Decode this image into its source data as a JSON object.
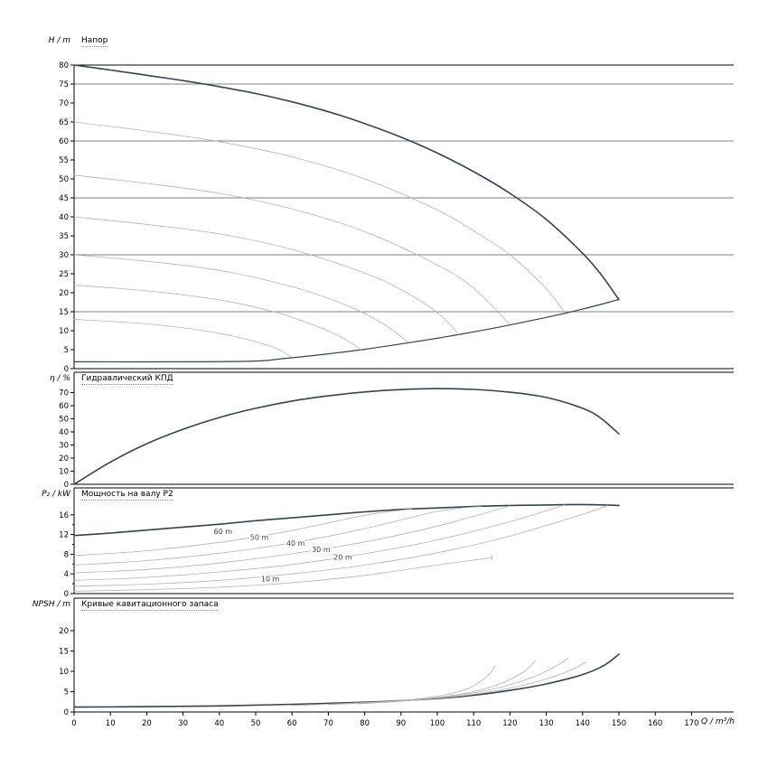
{
  "palette": {
    "dark": "#37424e",
    "gray": "#b3b3b3"
  },
  "x_axis": {
    "label": "Q / m³/h",
    "ticks": [
      0,
      10,
      20,
      30,
      40,
      50,
      60,
      70,
      80,
      90,
      100,
      110,
      120,
      130,
      140,
      150,
      160,
      170
    ]
  },
  "chart_data": [
    {
      "type": "line",
      "title": "Напор",
      "ylabel": "H / m",
      "yticks": [
        0,
        5,
        10,
        15,
        20,
        25,
        30,
        35,
        40,
        45,
        50,
        55,
        60,
        65,
        70,
        75,
        80
      ],
      "ylim": [
        0,
        80
      ],
      "gridlines": [
        15,
        30,
        45,
        60,
        75
      ],
      "series": [
        {
          "name": "max-speed-head",
          "color": "dark",
          "width": 1.6,
          "points": [
            [
              0,
              80
            ],
            [
              10,
              78.7
            ],
            [
              20,
              77.3
            ],
            [
              30,
              75.9
            ],
            [
              40,
              74.3
            ],
            [
              50,
              72.5
            ],
            [
              60,
              70.3
            ],
            [
              70,
              67.7
            ],
            [
              80,
              64.6
            ],
            [
              90,
              61
            ],
            [
              100,
              56.8
            ],
            [
              110,
              51.9
            ],
            [
              120,
              46.2
            ],
            [
              130,
              39.3
            ],
            [
              140,
              30.4
            ],
            [
              145,
              24.9
            ],
            [
              150,
              18.2
            ]
          ]
        },
        {
          "name": "control-limit",
          "color": "dark",
          "width": 1.2,
          "points": [
            [
              0,
              1.8
            ],
            [
              30,
              1.8
            ],
            [
              50,
              2
            ],
            [
              57,
              2.6
            ],
            [
              70,
              3.9
            ],
            [
              80,
              5.1
            ],
            [
              90,
              6.5
            ],
            [
              100,
              8
            ],
            [
              110,
              9.7
            ],
            [
              120,
              11.5
            ],
            [
              130,
              13.5
            ],
            [
              140,
              15.7
            ],
            [
              150,
              18.2
            ]
          ]
        },
        {
          "name": "speed-curve-65",
          "color": "gray",
          "width": 0.8,
          "points": [
            [
              0,
              65
            ],
            [
              20,
              62.6
            ],
            [
              40,
              59.8
            ],
            [
              60,
              55.8
            ],
            [
              80,
              50
            ],
            [
              100,
              41.8
            ],
            [
              110,
              36.3
            ],
            [
              120,
              30
            ],
            [
              130,
              21
            ],
            [
              135,
              14.9
            ]
          ]
        },
        {
          "name": "speed-curve-51",
          "color": "gray",
          "width": 0.8,
          "points": [
            [
              0,
              51
            ],
            [
              20,
              48.8
            ],
            [
              40,
              46.2
            ],
            [
              60,
              42.1
            ],
            [
              80,
              36.1
            ],
            [
              100,
              27.3
            ],
            [
              110,
              21.2
            ],
            [
              120,
              11.6
            ]
          ]
        },
        {
          "name": "speed-curve-40",
          "color": "gray",
          "width": 0.8,
          "points": [
            [
              0,
              40
            ],
            [
              20,
              38
            ],
            [
              40,
              35.5
            ],
            [
              60,
              31.4
            ],
            [
              80,
              25.2
            ],
            [
              90,
              20.8
            ],
            [
              100,
              14.8
            ],
            [
              106,
              9
            ]
          ]
        },
        {
          "name": "speed-curve-30",
          "color": "gray",
          "width": 0.8,
          "points": [
            [
              0,
              30
            ],
            [
              20,
              28.3
            ],
            [
              40,
              25.9
            ],
            [
              60,
              21.6
            ],
            [
              75,
              16.7
            ],
            [
              85,
              11.9
            ],
            [
              92,
              6.9
            ]
          ]
        },
        {
          "name": "speed-curve-22",
          "color": "gray",
          "width": 0.8,
          "points": [
            [
              0,
              22
            ],
            [
              20,
              20.5
            ],
            [
              40,
              18.1
            ],
            [
              55,
              15
            ],
            [
              65,
              11.8
            ],
            [
              73,
              8.6
            ],
            [
              79,
              5
            ]
          ]
        },
        {
          "name": "speed-curve-13",
          "color": "gray",
          "width": 0.8,
          "points": [
            [
              0,
              13
            ],
            [
              20,
              11.8
            ],
            [
              35,
              10.1
            ],
            [
              45,
              8.3
            ],
            [
              55,
              5.6
            ],
            [
              60,
              3
            ]
          ]
        }
      ]
    },
    {
      "type": "line",
      "title": "Гидравлический КПД",
      "ylabel": "η / %",
      "yticks": [
        0,
        10,
        20,
        30,
        40,
        50,
        60,
        70
      ],
      "ylim": [
        0,
        85
      ],
      "gridlines": [],
      "series": [
        {
          "name": "efficiency",
          "color": "dark",
          "width": 1.6,
          "points": [
            [
              0,
              0
            ],
            [
              10,
              17
            ],
            [
              20,
              31
            ],
            [
              30,
              42
            ],
            [
              40,
              51
            ],
            [
              50,
              58
            ],
            [
              60,
              63.5
            ],
            [
              70,
              67.5
            ],
            [
              80,
              70.5
            ],
            [
              90,
              72.3
            ],
            [
              100,
              73
            ],
            [
              110,
              72.4
            ],
            [
              120,
              70.3
            ],
            [
              130,
              66.3
            ],
            [
              140,
              58
            ],
            [
              145,
              50.5
            ],
            [
              150,
              38.5
            ]
          ]
        }
      ]
    },
    {
      "type": "line",
      "title": "Мощность на валу P2",
      "ylabel": "P₂ / kW",
      "yticks": [
        0,
        4,
        8,
        12,
        16
      ],
      "minor_ticks": [
        2,
        6,
        10,
        14
      ],
      "ylim": [
        0,
        21
      ],
      "gridlines": [],
      "series": [
        {
          "name": "max-speed-power",
          "color": "dark",
          "width": 1.6,
          "points": [
            [
              0,
              11.8
            ],
            [
              10,
              12.3
            ],
            [
              20,
              12.9
            ],
            [
              30,
              13.5
            ],
            [
              40,
              14.1
            ],
            [
              50,
              14.8
            ],
            [
              60,
              15.4
            ],
            [
              70,
              16
            ],
            [
              80,
              16.6
            ],
            [
              90,
              17.1
            ],
            [
              100,
              17.4
            ],
            [
              110,
              17.7
            ],
            [
              120,
              17.9
            ],
            [
              130,
              18
            ],
            [
              140,
              18.1
            ],
            [
              150,
              17.9
            ]
          ]
        },
        {
          "name": "power-60m",
          "label": "60 m",
          "label_pos": [
            41,
            12.1
          ],
          "color": "gray",
          "width": 0.8,
          "points": [
            [
              0,
              7.7
            ],
            [
              20,
              8.7
            ],
            [
              40,
              10.4
            ],
            [
              60,
              12.8
            ],
            [
              80,
              15.9
            ],
            [
              93,
              17.2
            ]
          ]
        },
        {
          "name": "power-50m",
          "label": "50 m",
          "label_pos": [
            51,
            10.9
          ],
          "color": "gray",
          "width": 0.8,
          "points": [
            [
              0,
              5.8
            ],
            [
              20,
              6.7
            ],
            [
              40,
              8.2
            ],
            [
              60,
              10.3
            ],
            [
              80,
              13.2
            ],
            [
              100,
              16.7
            ],
            [
              112,
              17.7
            ]
          ]
        },
        {
          "name": "power-40m",
          "label": "40 m",
          "label_pos": [
            61,
            9.7
          ],
          "color": "gray",
          "width": 0.8,
          "points": [
            [
              0,
              4.2
            ],
            [
              20,
              4.9
            ],
            [
              40,
              6.2
            ],
            [
              60,
              8.1
            ],
            [
              80,
              10.5
            ],
            [
              100,
              13.7
            ],
            [
              120,
              17.8
            ]
          ]
        },
        {
          "name": "power-30m",
          "label": "30 m",
          "label_pos": [
            68,
            8.4
          ],
          "color": "gray",
          "width": 0.8,
          "points": [
            [
              0,
              2.7
            ],
            [
              20,
              3.3
            ],
            [
              40,
              4.4
            ],
            [
              60,
              5.9
            ],
            [
              80,
              8.1
            ],
            [
              100,
              10.9
            ],
            [
              120,
              14.6
            ],
            [
              135,
              18
            ]
          ]
        },
        {
          "name": "power-20m",
          "label": "20 m",
          "label_pos": [
            74,
            6.9
          ],
          "color": "gray",
          "width": 0.8,
          "points": [
            [
              0,
              1.5
            ],
            [
              20,
              1.9
            ],
            [
              40,
              2.7
            ],
            [
              60,
              4
            ],
            [
              80,
              5.8
            ],
            [
              100,
              8.3
            ],
            [
              120,
              11.7
            ],
            [
              140,
              16.1
            ],
            [
              147,
              17.9
            ]
          ]
        },
        {
          "name": "power-10m",
          "label": "10 m",
          "label_pos": [
            54,
            2.5
          ],
          "color": "gray",
          "width": 0.8,
          "end_tick": true,
          "points": [
            [
              0,
              0.5
            ],
            [
              20,
              0.8
            ],
            [
              40,
              1.3
            ],
            [
              60,
              2.2
            ],
            [
              80,
              3.7
            ],
            [
              100,
              5.8
            ],
            [
              115,
              7.3
            ]
          ]
        }
      ]
    },
    {
      "type": "line",
      "title": "Кривые кавитационного запаса",
      "ylabel": "NPSH / m",
      "yticks": [
        0,
        5,
        10,
        15,
        20
      ],
      "ylim": [
        0,
        28
      ],
      "gridlines": [],
      "series": [
        {
          "name": "npsh-max",
          "color": "dark",
          "width": 1.6,
          "points": [
            [
              0,
              1.2
            ],
            [
              20,
              1.3
            ],
            [
              40,
              1.5
            ],
            [
              60,
              1.9
            ],
            [
              80,
              2.4
            ],
            [
              90,
              2.8
            ],
            [
              100,
              3.3
            ],
            [
              110,
              4.1
            ],
            [
              120,
              5.3
            ],
            [
              130,
              6.9
            ],
            [
              140,
              9.2
            ],
            [
              146,
              11.5
            ],
            [
              150,
              14.2
            ]
          ]
        },
        {
          "name": "npsh-reduced-1",
          "color": "gray",
          "width": 0.8,
          "points": [
            [
              60,
              1.6
            ],
            [
              80,
              2.3
            ],
            [
              92,
              3
            ],
            [
              102,
              4.2
            ],
            [
              109,
              6
            ],
            [
              114,
              9
            ],
            [
              116,
              11.5
            ]
          ]
        },
        {
          "name": "npsh-reduced-2",
          "color": "gray",
          "width": 0.8,
          "points": [
            [
              70,
              1.8
            ],
            [
              88,
              2.6
            ],
            [
              100,
              3.6
            ],
            [
              110,
              5
            ],
            [
              118,
              7.2
            ],
            [
              124,
              10
            ],
            [
              127,
              12.6
            ]
          ]
        },
        {
          "name": "npsh-reduced-3",
          "color": "gray",
          "width": 0.8,
          "points": [
            [
              78,
              2
            ],
            [
              95,
              3
            ],
            [
              108,
              4.4
            ],
            [
              118,
              6.2
            ],
            [
              127,
              8.8
            ],
            [
              133,
              11.5
            ],
            [
              136,
              13.2
            ]
          ]
        },
        {
          "name": "npsh-reduced-4",
          "color": "gray",
          "width": 0.8,
          "points": [
            [
              85,
              2.3
            ],
            [
              105,
              3.8
            ],
            [
              118,
              5.5
            ],
            [
              128,
              7.6
            ],
            [
              136,
              10
            ],
            [
              141,
              12.3
            ]
          ]
        }
      ]
    }
  ]
}
